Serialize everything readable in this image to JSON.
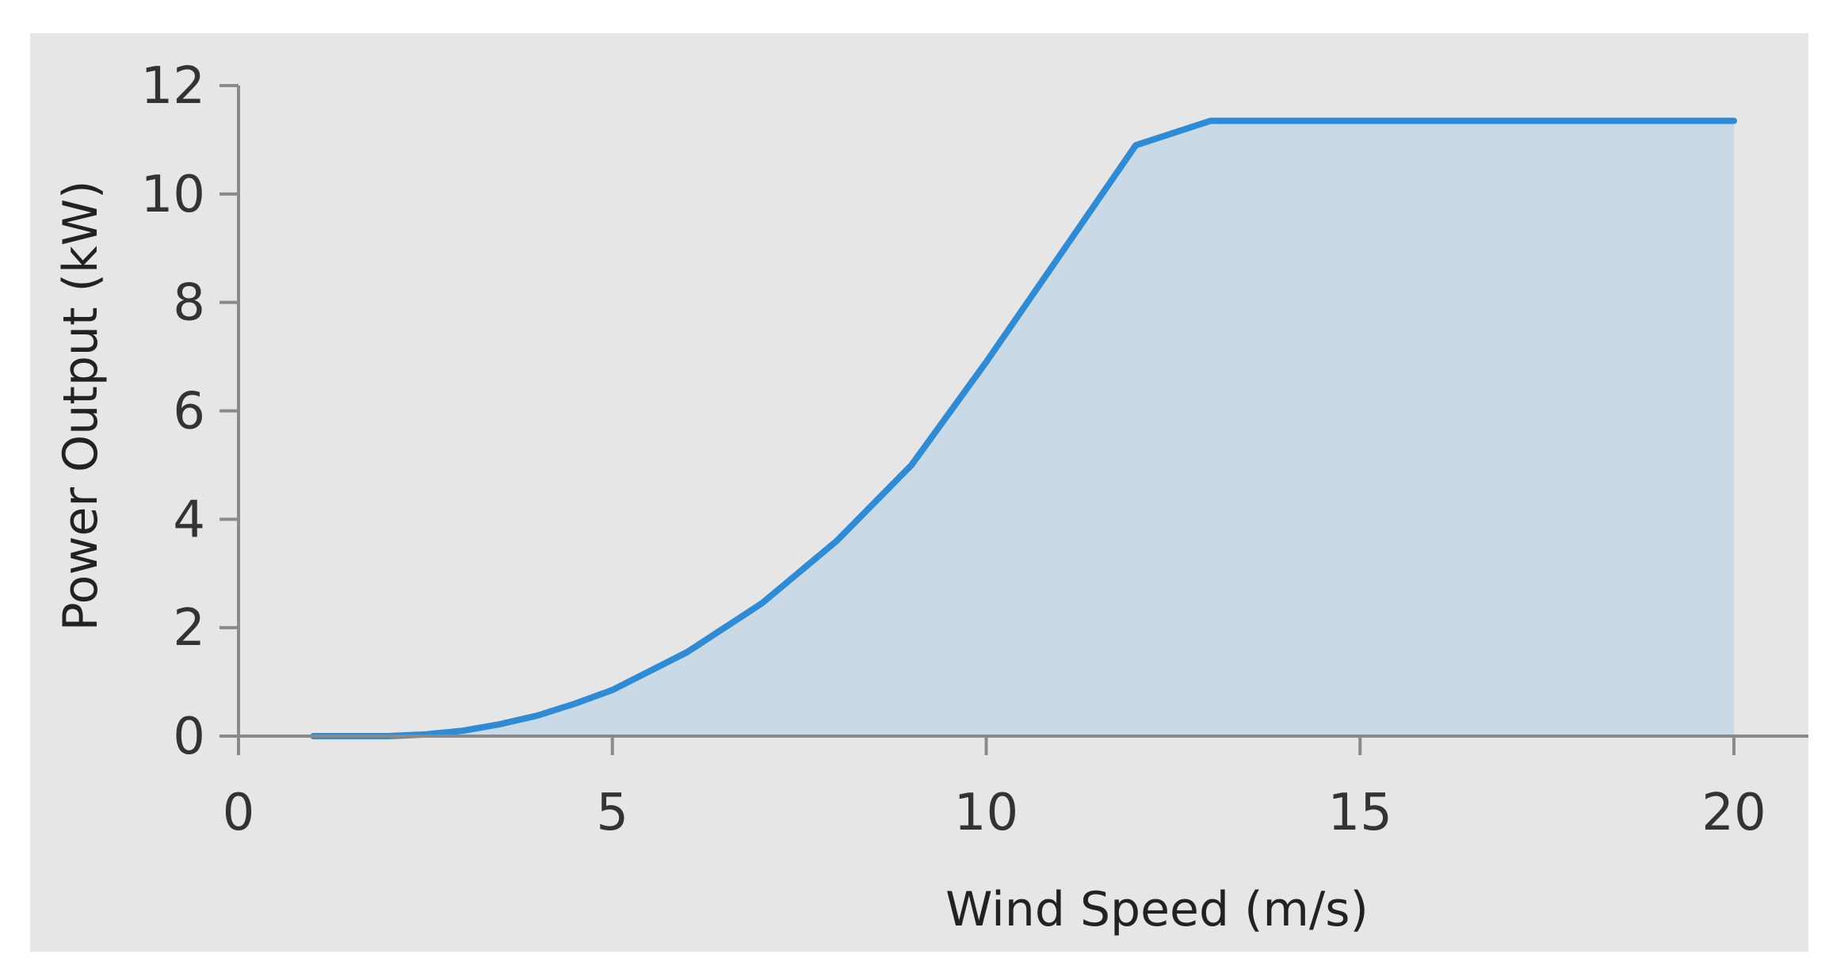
{
  "chart_data": {
    "type": "area",
    "title": "",
    "xlabel": "Wind Speed (m/s)",
    "ylabel": "Power Output (kW)",
    "xlim": [
      0,
      20
    ],
    "ylim": [
      0,
      12
    ],
    "x_ticks": [
      "0",
      "5",
      "10",
      "15",
      "20"
    ],
    "y_ticks": [
      "0",
      "2",
      "4",
      "6",
      "8",
      "10",
      "12"
    ],
    "grid": false,
    "legend": "none",
    "series": [
      {
        "x": [
          1,
          2,
          2.5,
          3,
          3.5,
          4,
          4.5,
          5,
          6,
          7,
          8,
          9,
          10,
          11,
          12,
          13,
          14,
          15,
          16,
          17,
          18,
          19,
          20
        ],
        "y": [
          0,
          0,
          0.03,
          0.1,
          0.22,
          0.38,
          0.6,
          0.85,
          1.55,
          2.45,
          3.6,
          5.0,
          6.9,
          8.9,
          10.9,
          11.35,
          11.35,
          11.35,
          11.35,
          11.35,
          11.35,
          11.35,
          11.35
        ]
      }
    ],
    "colors": {
      "line": "#2e8bd6",
      "fill": "#c9d9e6",
      "axis": "#8a8a8a",
      "panel": "#e6e6e6"
    }
  }
}
